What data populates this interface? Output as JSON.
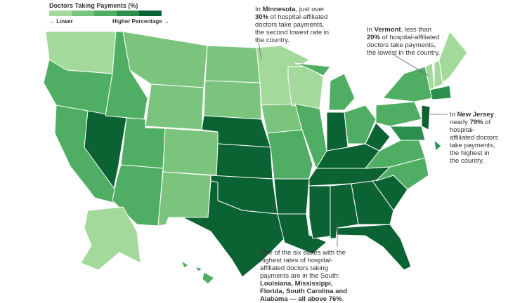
{
  "legend": {
    "title": "Doctors Taking Payments (%)",
    "low_label": "← Lower",
    "high_label": "Higher Percentage →",
    "colors": [
      "#a3d99b",
      "#7bc47d",
      "#4fae63",
      "#2c8f4e",
      "#0b6232"
    ]
  },
  "annotations": [
    {
      "parts": [
        "In ",
        "Minnesota",
        ", just over ",
        "30%",
        " of hospital-affiliated doctors take payments, the second lowest rate in the country."
      ]
    },
    {
      "parts": [
        "In ",
        "Vermont",
        ", less than ",
        "20%",
        " of hospital-affiliated doctors take payments, the lowest in the country."
      ]
    },
    {
      "parts": [
        "In ",
        "New Jersey",
        ", nearly ",
        "79%",
        " of hospital-affiliated doctors take payments, the highest in the country."
      ]
    },
    {
      "parts": [
        "Five of the six states with the highest rates of hospital-affiliated doctors taking payments are in the South: ",
        "Louisiana, Mississippi, Florida, South Carolina and Alabama — all above 76%",
        "."
      ]
    }
  ]
}
